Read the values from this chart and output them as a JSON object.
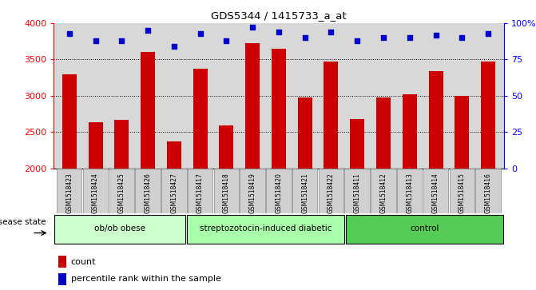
{
  "title": "GDS5344 / 1415733_a_at",
  "samples": [
    "GSM1518423",
    "GSM1518424",
    "GSM1518425",
    "GSM1518426",
    "GSM1518427",
    "GSM1518417",
    "GSM1518418",
    "GSM1518419",
    "GSM1518420",
    "GSM1518421",
    "GSM1518422",
    "GSM1518411",
    "GSM1518412",
    "GSM1518413",
    "GSM1518414",
    "GSM1518415",
    "GSM1518416"
  ],
  "counts": [
    3300,
    2630,
    2670,
    3600,
    2370,
    3370,
    2590,
    3720,
    3650,
    2980,
    3470,
    2680,
    2980,
    3020,
    3340,
    3000,
    3470
  ],
  "percentiles": [
    93,
    88,
    88,
    95,
    84,
    93,
    88,
    97,
    94,
    90,
    94,
    88,
    90,
    90,
    92,
    90,
    93
  ],
  "groups": [
    {
      "label": "ob/ob obese",
      "start": 0,
      "end": 5
    },
    {
      "label": "streptozotocin-induced diabetic",
      "start": 5,
      "end": 11
    },
    {
      "label": "control",
      "start": 11,
      "end": 17
    }
  ],
  "group_colors": [
    "#ccffcc",
    "#aaffaa",
    "#55cc55"
  ],
  "bar_color": "#cc0000",
  "dot_color": "#0000cc",
  "ylim_left": [
    2000,
    4000
  ],
  "ylim_right": [
    0,
    100
  ],
  "yticks_left": [
    2000,
    2500,
    3000,
    3500,
    4000
  ],
  "yticks_right": [
    0,
    25,
    50,
    75,
    100
  ],
  "ytick_right_labels": [
    "0",
    "25",
    "50",
    "75",
    "100%"
  ],
  "plot_bg": "#d8d8d8",
  "legend_count_label": "count",
  "legend_pct_label": "percentile rank within the sample",
  "disease_state_label": "disease state",
  "grid_vals": [
    2500,
    3000,
    3500
  ]
}
